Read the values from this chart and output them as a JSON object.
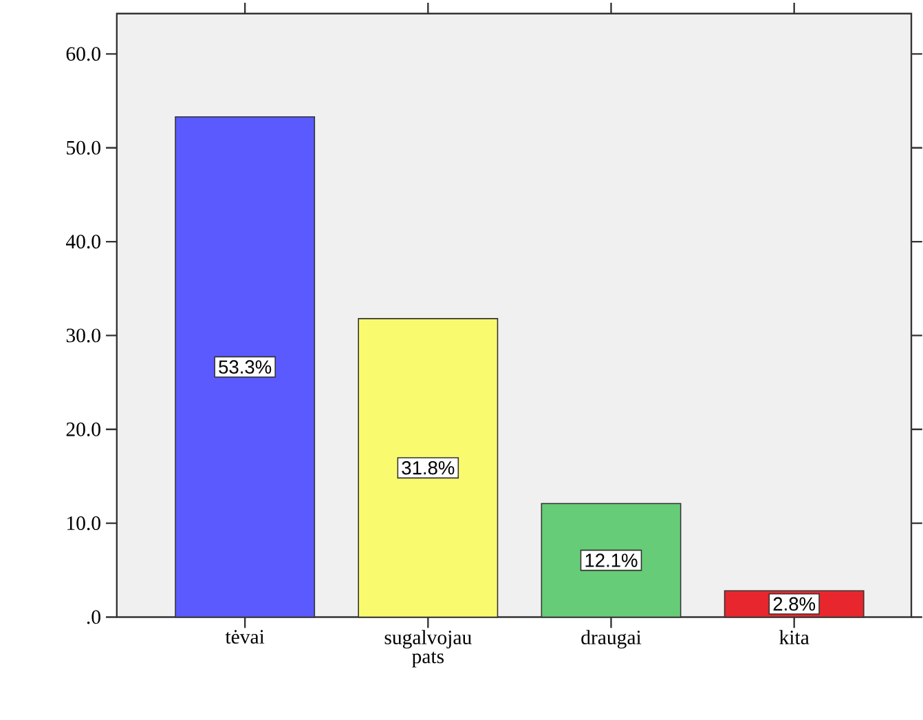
{
  "chart_data": {
    "type": "bar",
    "categories": [
      "tėvai",
      "sugalvojau pats",
      "draugai",
      "kita"
    ],
    "values": [
      53.3,
      31.8,
      12.1,
      2.8
    ],
    "colors": [
      "#5a5aff",
      "#fafa6e",
      "#66cc77",
      "#e8262e"
    ],
    "value_labels": [
      "53.3%",
      "31.8%",
      "12.1%",
      "2.8%"
    ],
    "ylim": [
      0,
      64.3
    ],
    "yticks": [
      {
        "value": 0,
        "label": ".0"
      },
      {
        "value": 10,
        "label": "10.0"
      },
      {
        "value": 20,
        "label": "20.0"
      },
      {
        "value": 30,
        "label": "30.0"
      },
      {
        "value": 40,
        "label": "40.0"
      },
      {
        "value": 50,
        "label": "50.0"
      },
      {
        "value": 60,
        "label": "60.0"
      }
    ],
    "grid": false
  }
}
